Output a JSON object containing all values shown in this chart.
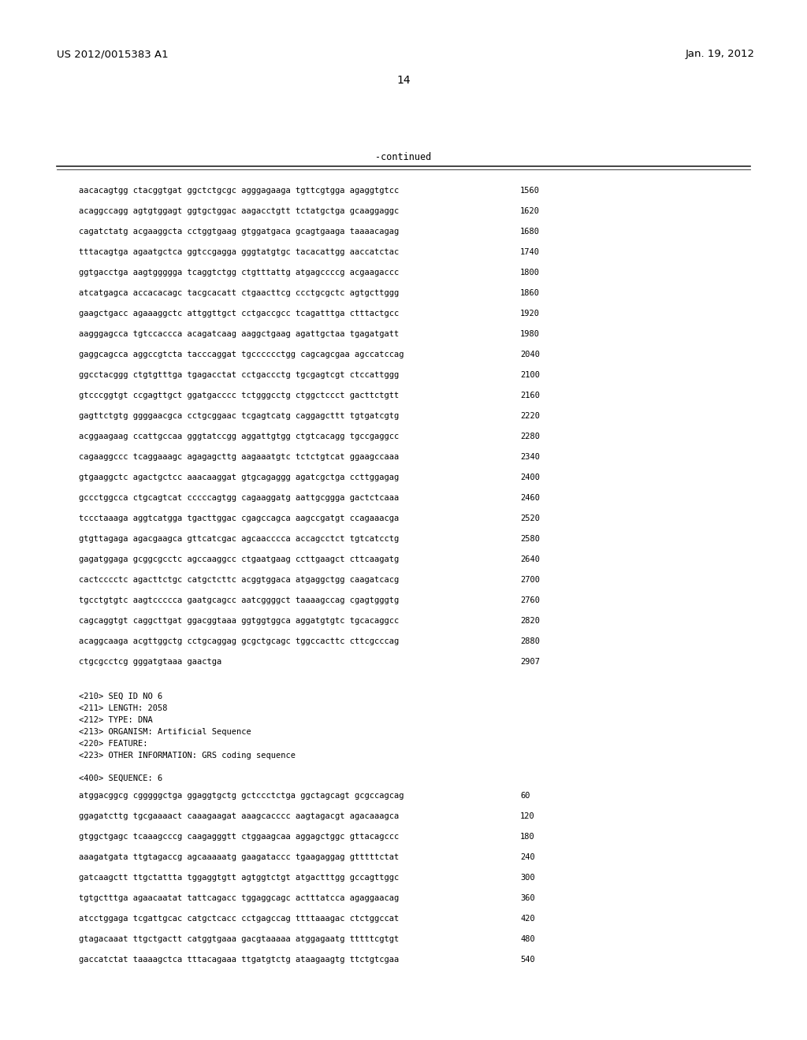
{
  "header_left": "US 2012/0015383 A1",
  "header_right": "Jan. 19, 2012",
  "page_number": "14",
  "continued_label": "-continued",
  "background_color": "#ffffff",
  "text_color": "#000000",
  "font_size_header": 9.5,
  "font_size_body": 7.5,
  "font_size_page": 10,
  "sequence_lines": [
    [
      "aacacagtgg ctacggtgat ggctctgcgc agggagaaga tgttcgtgga agaggtgtcc",
      "1560"
    ],
    [
      "acaggccagg agtgtggagt ggtgctggac aagacctgtt tctatgctga gcaaggaggc",
      "1620"
    ],
    [
      "cagatctatg acgaaggcta cctggtgaag gtggatgaca gcagtgaaga taaaacagag",
      "1680"
    ],
    [
      "tttacagtga agaatgctca ggtccgagga gggtatgtgc tacacattgg aaccatctac",
      "1740"
    ],
    [
      "ggtgacctga aagtggggga tcaggtctgg ctgtttattg atgagccccg acgaagaccc",
      "1800"
    ],
    [
      "atcatgagca accacacagc tacgcacatt ctgaacttcg ccctgcgctc agtgcttggg",
      "1860"
    ],
    [
      "gaagctgacc agaaaggctc attggttgct cctgaccgcc tcagatttga ctttactgcc",
      "1920"
    ],
    [
      "aagggagcca tgtccaccca acagatcaag aaggctgaag agattgctaa tgagatgatt",
      "1980"
    ],
    [
      "gaggcagcca aggccgtcta tacccaggat tgcccccctgg cagcagcgaa agccatccag",
      "2040"
    ],
    [
      "ggcctacggg ctgtgtttga tgagacctat cctgaccctg tgcgagtcgt ctccattggg",
      "2100"
    ],
    [
      "gtcccggtgt ccgagttgct ggatgacccc tctgggcctg ctggctccct gacttctgtt",
      "2160"
    ],
    [
      "gagttctgtg ggggaacgca cctgcggaac tcgagtcatg caggagcttt tgtgatcgtg",
      "2220"
    ],
    [
      "acggaagaag ccattgccaa gggtatccgg aggattgtgg ctgtcacagg tgccgaggcc",
      "2280"
    ],
    [
      "cagaaggccc tcaggaaagc agagagcttg aagaaatgtc tctctgtcat ggaagccaaa",
      "2340"
    ],
    [
      "gtgaaggctc agactgctcc aaacaaggat gtgcagaggg agatcgctga ccttggagag",
      "2400"
    ],
    [
      "gccctggcca ctgcagtcat cccccagtgg cagaaggatg aattgcggga gactctcaaa",
      "2460"
    ],
    [
      "tccctaaaga aggtcatgga tgacttggac cgagccagca aagccgatgt ccagaaacga",
      "2520"
    ],
    [
      "gtgttagaga agacgaagca gttcatcgac agcaacccca accagcctct tgtcatcctg",
      "2580"
    ],
    [
      "gagatggaga gcggcgcctc agccaaggcc ctgaatgaag ccttgaagct cttcaagatg",
      "2640"
    ],
    [
      "cactcccctc agacttctgc catgctcttc acggtggaca atgaggctgg caagatcacg",
      "2700"
    ],
    [
      "tgcctgtgtc aagtccccca gaatgcagcc aatcggggct taaaagccag cgagtgggtg",
      "2760"
    ],
    [
      "cagcaggtgt caggcttgat ggacggtaaa ggtggtggca aggatgtgtc tgcacaggcc",
      "2820"
    ],
    [
      "acaggcaaga acgttggctg cctgcaggag gcgctgcagc tggccacttc cttcgcccag",
      "2880"
    ],
    [
      "ctgcgcctcg gggatgtaaa gaactga",
      "2907"
    ]
  ],
  "metadata_lines": [
    "<210> SEQ ID NO 6",
    "<211> LENGTH: 2058",
    "<212> TYPE: DNA",
    "<213> ORGANISM: Artificial Sequence",
    "<220> FEATURE:",
    "<223> OTHER INFORMATION: GRS coding sequence"
  ],
  "sequence_label": "<400> SEQUENCE: 6",
  "sequence_lines_2": [
    [
      "atggacggcg cgggggctga ggaggtgctg gctccctctga ggctagcagt gcgccagcag",
      "60"
    ],
    [
      "ggagatcttg tgcgaaaact caaagaagat aaagcacccc aagtagacgt agacaaagca",
      "120"
    ],
    [
      "gtggctgagc tcaaagcccg caagagggtt ctggaagcaa aggagctggc gttacagccc",
      "180"
    ],
    [
      "aaagatgata ttgtagaccg agcaaaaatg gaagataccc tgaagaggag gtttttctat",
      "240"
    ],
    [
      "gatcaagctt ttgctattta tggaggtgtt agtggtctgt atgactttgg gccagttggc",
      "300"
    ],
    [
      "tgtgctttga agaacaatat tattcagacc tggaggcagc actttatcca agaggaacag",
      "360"
    ],
    [
      "atcctggaga tcgattgcac catgctcacc cctgagccag ttttaaagac ctctggccat",
      "420"
    ],
    [
      "gtagacaaat ttgctgactt catggtgaaa gacgtaaaaa atggagaatg tttttcgtgt",
      "480"
    ],
    [
      "gaccatctat taaaagctca tttacagaaa ttgatgtctg ataagaagtg ttctgtcgaa",
      "540"
    ]
  ]
}
